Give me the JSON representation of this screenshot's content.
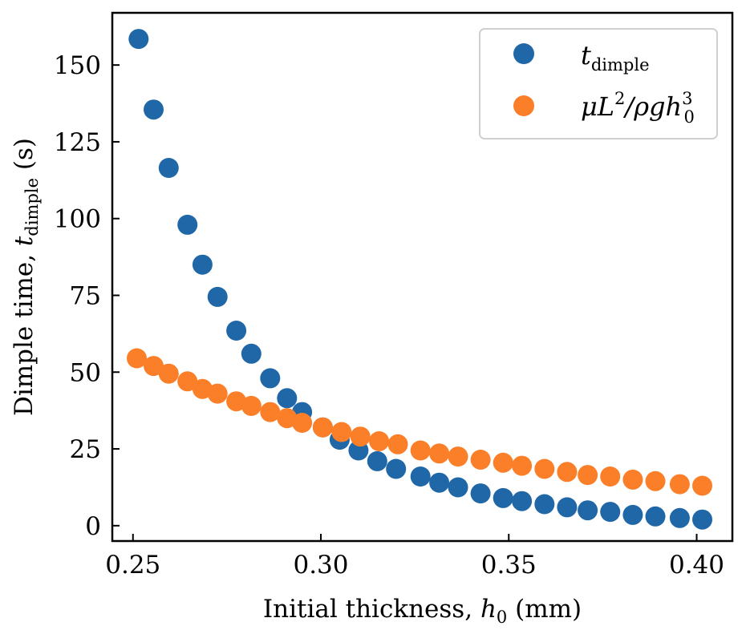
{
  "chart_data": {
    "type": "scatter",
    "title": "",
    "xlabel": {
      "text": "Initial thickness, ",
      "var": "h",
      "sub": "0",
      "unit": " (mm)"
    },
    "ylabel": {
      "text": "Dimple time, ",
      "var": "t",
      "sub": "dimple",
      "unit": " (s)"
    },
    "xlim": [
      0.2445,
      0.4095
    ],
    "ylim": [
      -5,
      167
    ],
    "xticks": [
      0.25,
      0.3,
      0.35,
      0.4
    ],
    "xtick_labels": [
      "0.25",
      "0.30",
      "0.35",
      "0.40"
    ],
    "yticks": [
      0,
      25,
      50,
      75,
      100,
      125,
      150
    ],
    "ytick_labels": [
      "0",
      "25",
      "50",
      "75",
      "100",
      "125",
      "150"
    ],
    "grid": false,
    "legend_position": "top-right",
    "series": [
      {
        "name": "t_dimple",
        "label_parts": {
          "var": "t",
          "sub": "dimple"
        },
        "color": "#1f67a6",
        "points": [
          [
            0.2515,
            158.5
          ],
          [
            0.2555,
            135.5
          ],
          [
            0.2595,
            116.5
          ],
          [
            0.2645,
            98.0
          ],
          [
            0.2685,
            85.0
          ],
          [
            0.2725,
            74.5
          ],
          [
            0.2775,
            63.5
          ],
          [
            0.2815,
            56.0
          ],
          [
            0.2865,
            48.0
          ],
          [
            0.291,
            41.5
          ],
          [
            0.295,
            37.0
          ],
          [
            0.3005,
            32.0
          ],
          [
            0.305,
            28.0
          ],
          [
            0.31,
            24.5
          ],
          [
            0.315,
            21.0
          ],
          [
            0.32,
            18.5
          ],
          [
            0.3265,
            16.0
          ],
          [
            0.3315,
            14.0
          ],
          [
            0.3365,
            12.5
          ],
          [
            0.3425,
            10.5
          ],
          [
            0.3485,
            9.0
          ],
          [
            0.3535,
            8.0
          ],
          [
            0.3595,
            7.0
          ],
          [
            0.3655,
            6.0
          ],
          [
            0.371,
            5.0
          ],
          [
            0.377,
            4.5
          ],
          [
            0.383,
            3.5
          ],
          [
            0.389,
            3.0
          ],
          [
            0.3955,
            2.5
          ],
          [
            0.4015,
            2.0
          ]
        ]
      },
      {
        "name": "μL²/ρgh₀³",
        "label_parts": {
          "mu": "μ",
          "L": "L",
          "L_sup": "2",
          "slash": "/",
          "rho": "ρgh",
          "h_sub": "0",
          "h_sup": "3"
        },
        "color": "#fb7f28",
        "points": [
          [
            0.251,
            54.5
          ],
          [
            0.2555,
            52.0
          ],
          [
            0.2595,
            49.5
          ],
          [
            0.2645,
            47.0
          ],
          [
            0.2685,
            44.5
          ],
          [
            0.2725,
            43.0
          ],
          [
            0.2775,
            40.5
          ],
          [
            0.2815,
            39.0
          ],
          [
            0.2865,
            37.0
          ],
          [
            0.291,
            35.0
          ],
          [
            0.295,
            33.5
          ],
          [
            0.3005,
            32.0
          ],
          [
            0.3055,
            30.5
          ],
          [
            0.3105,
            29.0
          ],
          [
            0.3155,
            27.5
          ],
          [
            0.3205,
            26.5
          ],
          [
            0.3265,
            24.5
          ],
          [
            0.3315,
            23.5
          ],
          [
            0.3365,
            22.5
          ],
          [
            0.3425,
            21.5
          ],
          [
            0.3485,
            20.5
          ],
          [
            0.3535,
            19.5
          ],
          [
            0.3595,
            18.5
          ],
          [
            0.3655,
            17.5
          ],
          [
            0.371,
            16.5
          ],
          [
            0.377,
            16.0
          ],
          [
            0.383,
            15.0
          ],
          [
            0.389,
            14.5
          ],
          [
            0.3955,
            13.5
          ],
          [
            0.4015,
            13.0
          ]
        ]
      }
    ]
  }
}
